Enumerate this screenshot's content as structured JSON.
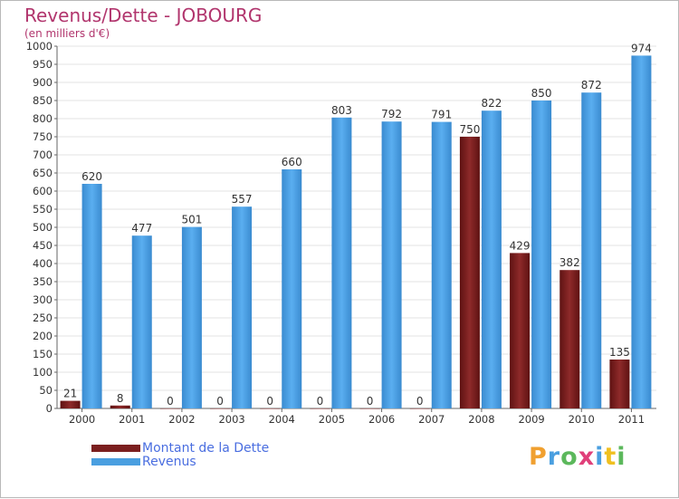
{
  "chart_data": {
    "type": "bar",
    "title": "Revenus/Dette - JOBOURG",
    "subtitle": "(en milliers d'€)",
    "categories": [
      "2000",
      "2001",
      "2002",
      "2003",
      "2004",
      "2005",
      "2006",
      "2007",
      "2008",
      "2009",
      "2010",
      "2011"
    ],
    "series": [
      {
        "name": "Montant de la Dette",
        "color": "#7b1f1f",
        "values": [
          21,
          8,
          0,
          0,
          0,
          0,
          0,
          0,
          750,
          429,
          382,
          135
        ]
      },
      {
        "name": "Revenus",
        "color": "#4a9fe0",
        "values": [
          620,
          477,
          501,
          557,
          660,
          803,
          792,
          791,
          822,
          850,
          872,
          974
        ]
      }
    ],
    "ylim": [
      0,
      1000
    ],
    "yticks": [
      0,
      50,
      100,
      150,
      200,
      250,
      300,
      350,
      400,
      450,
      500,
      550,
      600,
      650,
      700,
      750,
      800,
      850,
      900,
      950,
      1000
    ],
    "grid": true,
    "legend": "bottom-left"
  },
  "branding": {
    "logo_text": "Proxiti",
    "logo_colors": [
      "#f0a030",
      "#4a9fe0",
      "#5cb85c",
      "#e0407a",
      "#4a9fe0",
      "#f0c020",
      "#5cb85c"
    ]
  }
}
